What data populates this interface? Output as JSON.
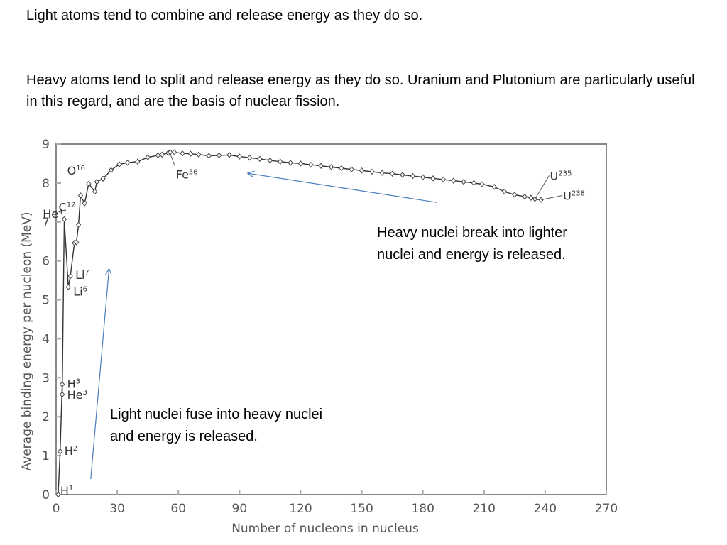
{
  "slide": {
    "line1": "Light atoms tend to combine and release energy as they do so.",
    "line2": "Heavy atoms tend to split and release energy as they do so.  Uranium and Plutonium are particularly useful in this regard, and are the basis of nuclear fission.",
    "callout_heavy": "Heavy nuclei break into lighter nuclei and energy is released.",
    "callout_light": "Light nuclei fuse into heavy nuclei and energy is released."
  },
  "chart_data": {
    "type": "line",
    "title": "",
    "xlabel": "Number of nucleons in nucleus",
    "ylabel": "Average binding energy per nucleon (MeV)",
    "xlim": [
      0,
      270
    ],
    "ylim": [
      0,
      9
    ],
    "xticks": [
      0,
      30,
      60,
      90,
      120,
      150,
      180,
      210,
      240,
      270
    ],
    "yticks": [
      0,
      1,
      2,
      3,
      4,
      5,
      6,
      7,
      8,
      9
    ],
    "series": [
      {
        "name": "binding energy",
        "x": [
          1,
          2,
          3,
          3,
          4,
          6,
          7,
          9,
          10,
          11,
          12,
          14,
          16,
          19,
          20,
          23,
          27,
          31,
          35,
          40,
          45,
          50,
          52,
          55,
          56,
          58,
          62,
          66,
          70,
          75,
          80,
          85,
          90,
          95,
          100,
          105,
          110,
          115,
          120,
          125,
          130,
          135,
          140,
          145,
          150,
          155,
          160,
          165,
          170,
          175,
          180,
          185,
          190,
          195,
          200,
          205,
          209,
          215,
          220,
          225,
          230,
          233,
          235,
          238
        ],
        "values": [
          0,
          1.11,
          2.83,
          2.57,
          7.07,
          5.33,
          5.61,
          6.46,
          6.48,
          6.93,
          7.68,
          7.48,
          7.98,
          7.78,
          8.03,
          8.11,
          8.33,
          8.48,
          8.52,
          8.55,
          8.66,
          8.71,
          8.73,
          8.77,
          8.79,
          8.79,
          8.76,
          8.75,
          8.73,
          8.7,
          8.71,
          8.72,
          8.68,
          8.65,
          8.62,
          8.58,
          8.55,
          8.52,
          8.5,
          8.47,
          8.44,
          8.41,
          8.38,
          8.35,
          8.32,
          8.29,
          8.26,
          8.24,
          8.21,
          8.18,
          8.15,
          8.12,
          8.09,
          8.06,
          8.03,
          8.0,
          7.97,
          7.9,
          7.78,
          7.7,
          7.65,
          7.62,
          7.59,
          7.57
        ]
      }
    ],
    "annotations": [
      {
        "base": "H",
        "mass": "1",
        "x": 1,
        "y": 0
      },
      {
        "base": "H",
        "mass": "2",
        "x": 2,
        "y": 1.11
      },
      {
        "base": "H",
        "mass": "3",
        "x": 3,
        "y": 2.83
      },
      {
        "base": "He",
        "mass": "3",
        "x": 3,
        "y": 2.57
      },
      {
        "base": "He",
        "mass": "4",
        "x": 4,
        "y": 7.07
      },
      {
        "base": "Li",
        "mass": "7",
        "x": 7,
        "y": 5.61
      },
      {
        "base": "Li",
        "mass": "6",
        "x": 6,
        "y": 5.33
      },
      {
        "base": "C",
        "mass": "12",
        "x": 12,
        "y": 7.68
      },
      {
        "base": "O",
        "mass": "16",
        "x": 16,
        "y": 7.98
      },
      {
        "base": "Fe",
        "mass": "56",
        "x": 56,
        "y": 8.79
      },
      {
        "base": "U",
        "mass": "235",
        "x": 235,
        "y": 7.59
      },
      {
        "base": "U",
        "mass": "238",
        "x": 238,
        "y": 7.57
      }
    ],
    "arrows": [
      {
        "name": "fission-arrow",
        "from": [
          187,
          7.5
        ],
        "to": [
          94,
          8.25
        ]
      },
      {
        "name": "fusion-arrow",
        "from": [
          17,
          0.4
        ],
        "to": [
          26,
          5.8
        ]
      }
    ]
  }
}
